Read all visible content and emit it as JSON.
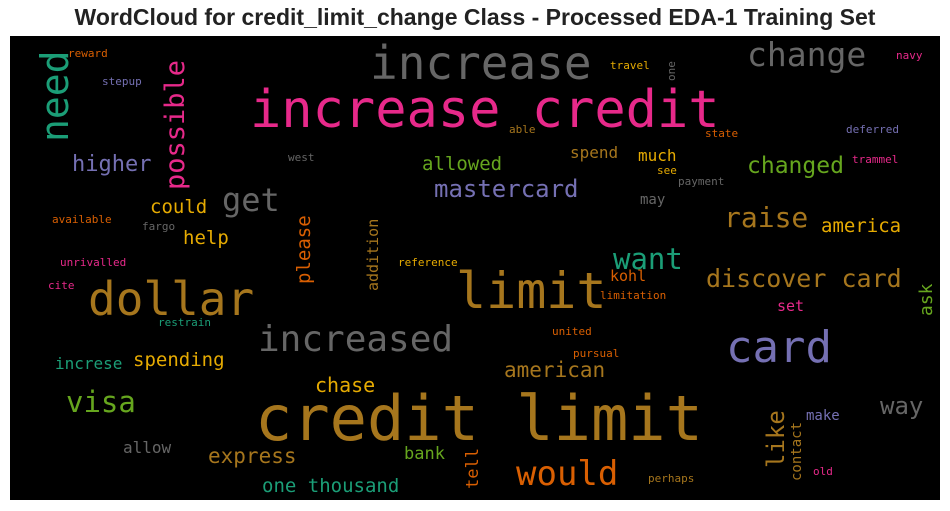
{
  "chart_data": {
    "type": "wordcloud",
    "title": "WordCloud for credit_limit_change Class - Processed EDA-1 Training Set",
    "background": "#000000",
    "words": [
      {
        "text": "credit limit",
        "color": "#a6761d"
      },
      {
        "text": "increase credit",
        "color": "#e7298a"
      },
      {
        "text": "increase",
        "color": "#666666"
      },
      {
        "text": "dollar",
        "color": "#a6761d"
      },
      {
        "text": "limit",
        "color": "#a6761d"
      },
      {
        "text": "card",
        "color": "#7570b3"
      },
      {
        "text": "increased",
        "color": "#666666"
      },
      {
        "text": "change",
        "color": "#666666"
      },
      {
        "text": "need",
        "color": "#1b9e77"
      },
      {
        "text": "possible",
        "color": "#e7298a"
      },
      {
        "text": "would",
        "color": "#d95f02"
      },
      {
        "text": "get",
        "color": "#666666"
      },
      {
        "text": "raise",
        "color": "#a6761d"
      },
      {
        "text": "discover card",
        "color": "#a6761d"
      },
      {
        "text": "visa",
        "color": "#66a61e"
      },
      {
        "text": "want",
        "color": "#1b9e77"
      },
      {
        "text": "mastercard",
        "color": "#7570b3"
      },
      {
        "text": "changed",
        "color": "#66a61e"
      },
      {
        "text": "higher",
        "color": "#7570b3"
      },
      {
        "text": "like",
        "color": "#a6761d"
      },
      {
        "text": "way",
        "color": "#666666"
      },
      {
        "text": "american",
        "color": "#a6761d"
      },
      {
        "text": "express",
        "color": "#a6761d"
      },
      {
        "text": "allowed",
        "color": "#66a61e"
      },
      {
        "text": "spending",
        "color": "#e6ab02"
      },
      {
        "text": "chase",
        "color": "#e6ab02"
      },
      {
        "text": "one thousand",
        "color": "#1b9e77"
      },
      {
        "text": "america",
        "color": "#e6ab02"
      },
      {
        "text": "please",
        "color": "#d95f02"
      },
      {
        "text": "could",
        "color": "#e6ab02"
      },
      {
        "text": "help",
        "color": "#e6ab02"
      },
      {
        "text": "tell",
        "color": "#d95f02"
      },
      {
        "text": "ask",
        "color": "#66a61e"
      },
      {
        "text": "bank",
        "color": "#66a61e"
      },
      {
        "text": "increse",
        "color": "#1b9e77"
      },
      {
        "text": "allow",
        "color": "#666666"
      },
      {
        "text": "addition",
        "color": "#a6761d"
      },
      {
        "text": "spend",
        "color": "#a6761d"
      },
      {
        "text": "much",
        "color": "#e6ab02"
      },
      {
        "text": "kohl",
        "color": "#d95f02"
      },
      {
        "text": "set",
        "color": "#e7298a"
      },
      {
        "text": "make",
        "color": "#7570b3"
      },
      {
        "text": "contact",
        "color": "#a6761d"
      },
      {
        "text": "may",
        "color": "#666666"
      },
      {
        "text": "see",
        "color": "#e6ab02"
      },
      {
        "text": "payment",
        "color": "#666666"
      },
      {
        "text": "travel",
        "color": "#e6ab02"
      },
      {
        "text": "one",
        "color": "#666666"
      },
      {
        "text": "able",
        "color": "#a6761d"
      },
      {
        "text": "state",
        "color": "#d95f02"
      },
      {
        "text": "deferred",
        "color": "#7570b3"
      },
      {
        "text": "trammel",
        "color": "#e7298a"
      },
      {
        "text": "navy",
        "color": "#e7298a"
      },
      {
        "text": "reward",
        "color": "#d95f02"
      },
      {
        "text": "stepup",
        "color": "#7570b3"
      },
      {
        "text": "west",
        "color": "#666666"
      },
      {
        "text": "available",
        "color": "#d95f02"
      },
      {
        "text": "fargo",
        "color": "#666666"
      },
      {
        "text": "unrivalled",
        "color": "#e7298a"
      },
      {
        "text": "cite",
        "color": "#e7298a"
      },
      {
        "text": "restrain",
        "color": "#1b9e77"
      },
      {
        "text": "reference",
        "color": "#e6ab02"
      },
      {
        "text": "limitation",
        "color": "#d95f02"
      },
      {
        "text": "united",
        "color": "#d95f02"
      },
      {
        "text": "pursual",
        "color": "#d95f02"
      },
      {
        "text": "perhaps",
        "color": "#a6761d"
      },
      {
        "text": "old",
        "color": "#e7298a"
      }
    ]
  }
}
